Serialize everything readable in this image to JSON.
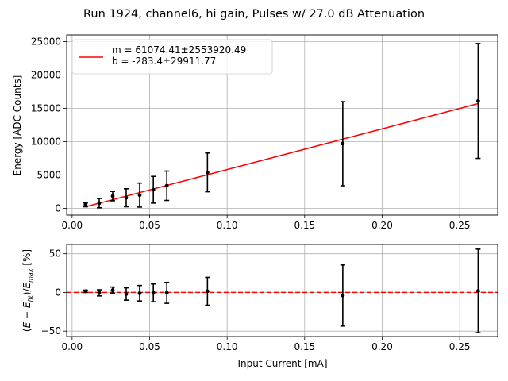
{
  "title": "Run 1924, channel6, hi gain, Pulses w/ 27.0 dB Attenuation",
  "colors": {
    "fit": "#ff0000",
    "points": "#000000",
    "grid": "#b0b0b0",
    "zero_line": "#ff0000"
  },
  "chart_data": [
    {
      "type": "scatter",
      "ylabel": "Energy [ADC Counts]",
      "xlim": [
        -0.0035,
        0.2745
      ],
      "ylim": [
        -1000,
        26000
      ],
      "xticks": [
        0.0,
        0.05,
        0.1,
        0.15,
        0.2,
        0.25
      ],
      "xticklabels": [
        "0.00",
        "0.05",
        "0.10",
        "0.15",
        "0.20",
        "0.25"
      ],
      "yticks": [
        0,
        5000,
        10000,
        15000,
        20000,
        25000
      ],
      "yticklabels": [
        "0",
        "5000",
        "10000",
        "15000",
        "20000",
        "25000"
      ],
      "grid": true,
      "legend_position": "top-left",
      "series": [
        {
          "kind": "errorbar",
          "x": [
            0.0087,
            0.0175,
            0.0262,
            0.0349,
            0.0436,
            0.0524,
            0.0611,
            0.0873,
            0.1746,
            0.2619
          ],
          "y": [
            530,
            800,
            1850,
            1600,
            2000,
            2800,
            3400,
            5400,
            9700,
            16100
          ],
          "yerr": [
            280,
            700,
            700,
            1350,
            1800,
            2000,
            2200,
            2900,
            6300,
            8600
          ]
        },
        {
          "kind": "line",
          "name": "m = 61074.41±2553920.49\nb = -283.4±29911.77",
          "legend_lines": [
            "m = 61074.41±2553920.49",
            "b = -283.4±29911.77"
          ],
          "x": [
            0.0087,
            0.2619
          ],
          "y": [
            248,
            15712
          ]
        }
      ]
    },
    {
      "type": "scatter",
      "xlabel": "Input Current [mA]",
      "xlim": [
        -0.0035,
        0.2745
      ],
      "ylim": [
        -57,
        62
      ],
      "xticks": [
        0.0,
        0.05,
        0.1,
        0.15,
        0.2,
        0.25
      ],
      "xticklabels": [
        "0.00",
        "0.05",
        "0.10",
        "0.15",
        "0.20",
        "0.25"
      ],
      "yticks": [
        -50,
        0,
        50
      ],
      "yticklabels": [
        "−50",
        "0",
        "50"
      ],
      "grid": true,
      "series": [
        {
          "kind": "errorbar",
          "x": [
            0.0087,
            0.0175,
            0.0262,
            0.0349,
            0.0436,
            0.0524,
            0.0611,
            0.0873,
            0.1746,
            0.2619
          ],
          "y": [
            1.5,
            -0.5,
            3.0,
            -2.0,
            -1.0,
            -0.5,
            -0.5,
            1.5,
            -4.0,
            2.0
          ],
          "yerr": [
            1.5,
            4.0,
            4.0,
            8.0,
            10.0,
            11.5,
            13.5,
            18.0,
            39.5,
            54.0
          ]
        },
        {
          "kind": "hline",
          "y": 0,
          "style": "dashed"
        }
      ]
    }
  ]
}
